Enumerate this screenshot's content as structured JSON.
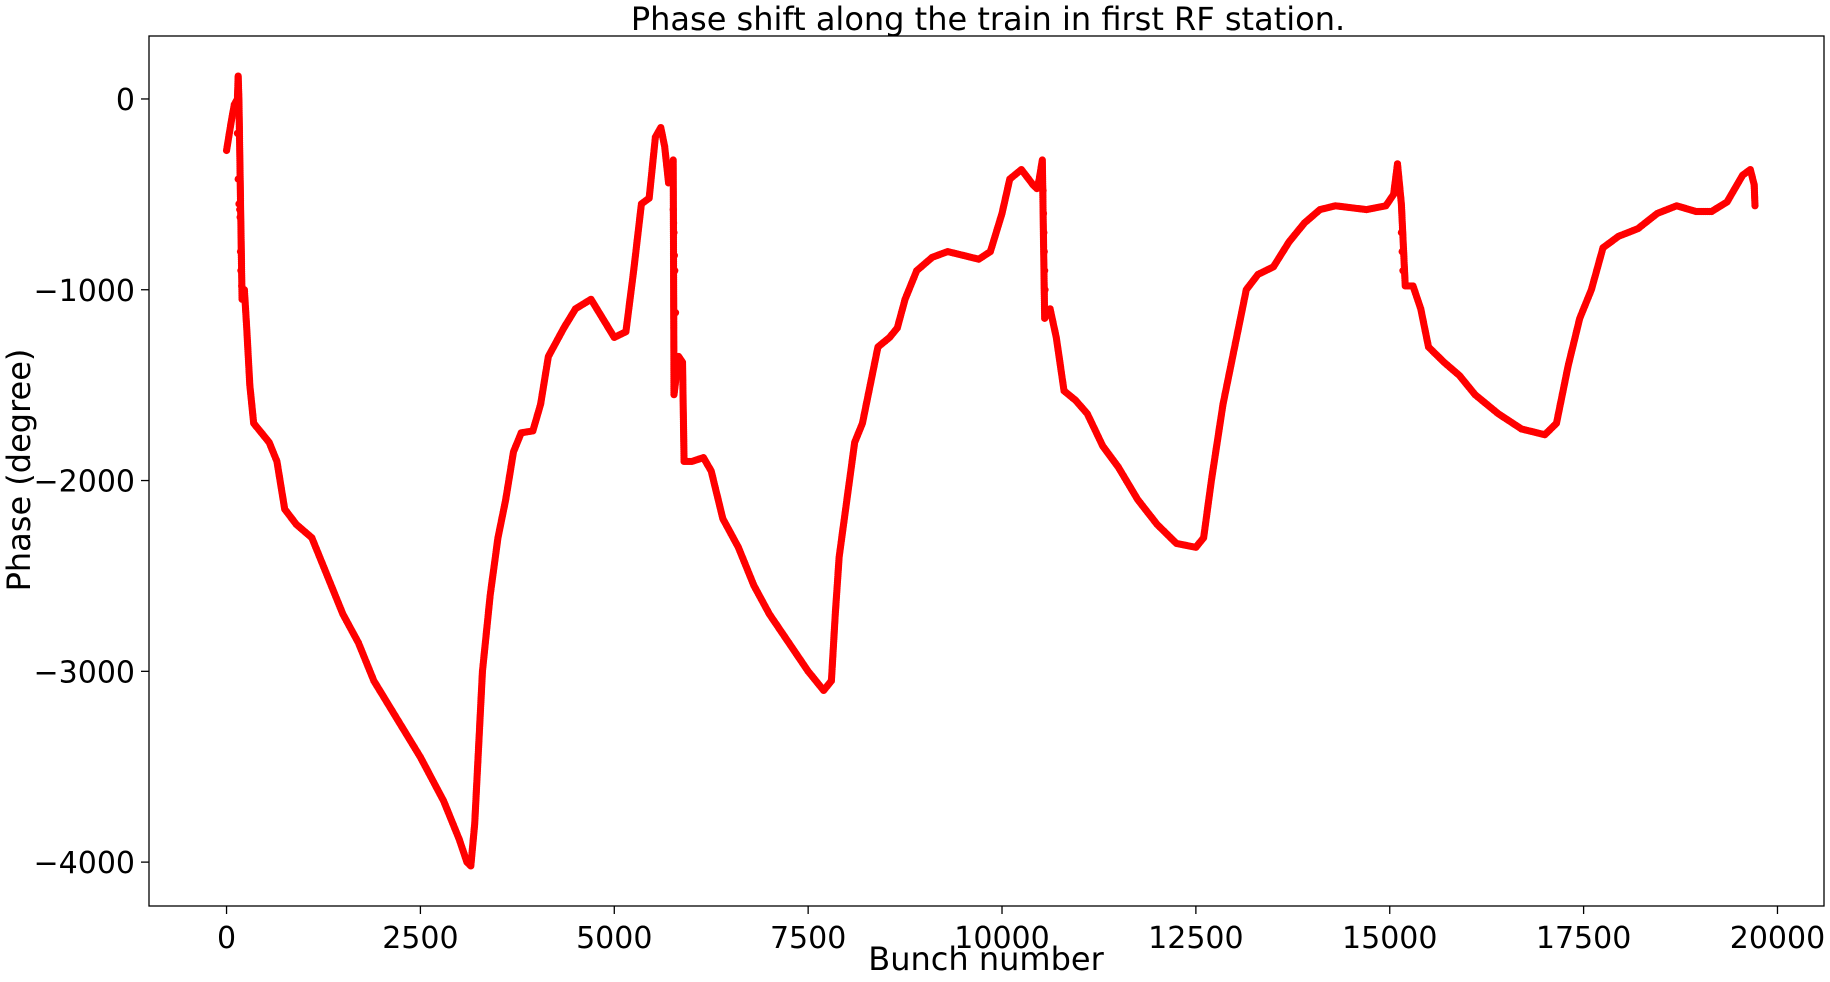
{
  "chart_data": {
    "type": "scatter",
    "title": "Phase shift along the train in first RF station.",
    "xlabel": "Bunch number",
    "ylabel": "Phase (degree)",
    "xlim": [
      -1000,
      20600
    ],
    "ylim": [
      -4230,
      330
    ],
    "xticks": [
      0,
      2500,
      5000,
      7500,
      10000,
      12500,
      15000,
      17500,
      20000
    ],
    "yticks": [
      0,
      -1000,
      -2000,
      -3000,
      -4000
    ],
    "xtick_labels": [
      "0",
      "2500",
      "5000",
      "7500",
      "10000",
      "12500",
      "15000",
      "17500",
      "20000"
    ],
    "ytick_labels": [
      "0",
      "−1000",
      "−2000",
      "−3000",
      "−4000"
    ],
    "grid": false,
    "legend": "none",
    "series": [
      {
        "color": "#ff0000",
        "marker": "circle",
        "points": [
          [
            0,
            -270
          ],
          [
            60,
            -120
          ],
          [
            100,
            -30
          ],
          [
            140,
            0
          ],
          [
            150,
            120
          ],
          [
            160,
            -10
          ],
          [
            200,
            -1050
          ],
          [
            230,
            -1000
          ],
          [
            260,
            -1200
          ],
          [
            300,
            -1500
          ],
          [
            350,
            -1700
          ],
          [
            450,
            -1750
          ],
          [
            550,
            -1800
          ],
          [
            650,
            -1900
          ],
          [
            750,
            -2150
          ],
          [
            900,
            -2230
          ],
          [
            1100,
            -2300
          ],
          [
            1300,
            -2500
          ],
          [
            1500,
            -2700
          ],
          [
            1700,
            -2850
          ],
          [
            1900,
            -3050
          ],
          [
            2200,
            -3250
          ],
          [
            2500,
            -3450
          ],
          [
            2800,
            -3680
          ],
          [
            3000,
            -3880
          ],
          [
            3100,
            -4000
          ],
          [
            3150,
            -4020
          ],
          [
            3200,
            -3800
          ],
          [
            3250,
            -3400
          ],
          [
            3300,
            -3000
          ],
          [
            3400,
            -2600
          ],
          [
            3500,
            -2300
          ],
          [
            3600,
            -2100
          ],
          [
            3700,
            -1850
          ],
          [
            3800,
            -1750
          ],
          [
            3950,
            -1740
          ],
          [
            4050,
            -1600
          ],
          [
            4150,
            -1350
          ],
          [
            4350,
            -1200
          ],
          [
            4500,
            -1100
          ],
          [
            4700,
            -1050
          ],
          [
            4850,
            -1150
          ],
          [
            5000,
            -1250
          ],
          [
            5150,
            -1220
          ],
          [
            5250,
            -900
          ],
          [
            5350,
            -550
          ],
          [
            5450,
            -520
          ],
          [
            5530,
            -200
          ],
          [
            5600,
            -150
          ],
          [
            5650,
            -250
          ],
          [
            5700,
            -440
          ],
          [
            5740,
            -420
          ],
          [
            5760,
            -320
          ],
          [
            5770,
            -1550
          ],
          [
            5830,
            -1350
          ],
          [
            5880,
            -1380
          ],
          [
            5900,
            -1900
          ],
          [
            6000,
            -1900
          ],
          [
            6150,
            -1880
          ],
          [
            6250,
            -1950
          ],
          [
            6400,
            -2200
          ],
          [
            6600,
            -2350
          ],
          [
            6800,
            -2550
          ],
          [
            7000,
            -2700
          ],
          [
            7250,
            -2850
          ],
          [
            7500,
            -3000
          ],
          [
            7700,
            -3100
          ],
          [
            7800,
            -3050
          ],
          [
            7850,
            -2700
          ],
          [
            7900,
            -2400
          ],
          [
            8000,
            -2100
          ],
          [
            8100,
            -1800
          ],
          [
            8200,
            -1700
          ],
          [
            8300,
            -1500
          ],
          [
            8400,
            -1300
          ],
          [
            8550,
            -1250
          ],
          [
            8650,
            -1200
          ],
          [
            8750,
            -1050
          ],
          [
            8900,
            -900
          ],
          [
            9100,
            -830
          ],
          [
            9300,
            -800
          ],
          [
            9500,
            -820
          ],
          [
            9700,
            -840
          ],
          [
            9850,
            -800
          ],
          [
            10000,
            -600
          ],
          [
            10100,
            -420
          ],
          [
            10250,
            -370
          ],
          [
            10400,
            -450
          ],
          [
            10450,
            -470
          ],
          [
            10480,
            -420
          ],
          [
            10520,
            -320
          ],
          [
            10550,
            -1150
          ],
          [
            10620,
            -1100
          ],
          [
            10700,
            -1250
          ],
          [
            10800,
            -1530
          ],
          [
            10950,
            -1580
          ],
          [
            11100,
            -1650
          ],
          [
            11300,
            -1820
          ],
          [
            11500,
            -1930
          ],
          [
            11750,
            -2100
          ],
          [
            12000,
            -2230
          ],
          [
            12250,
            -2330
          ],
          [
            12500,
            -2350
          ],
          [
            12600,
            -2300
          ],
          [
            12700,
            -2000
          ],
          [
            12850,
            -1600
          ],
          [
            13000,
            -1300
          ],
          [
            13150,
            -1000
          ],
          [
            13300,
            -920
          ],
          [
            13500,
            -880
          ],
          [
            13700,
            -750
          ],
          [
            13900,
            -650
          ],
          [
            14100,
            -580
          ],
          [
            14300,
            -560
          ],
          [
            14500,
            -570
          ],
          [
            14700,
            -580
          ],
          [
            14950,
            -560
          ],
          [
            15050,
            -500
          ],
          [
            15100,
            -340
          ],
          [
            15150,
            -550
          ],
          [
            15200,
            -980
          ],
          [
            15300,
            -980
          ],
          [
            15400,
            -1100
          ],
          [
            15500,
            -1300
          ],
          [
            15700,
            -1380
          ],
          [
            15900,
            -1450
          ],
          [
            16100,
            -1550
          ],
          [
            16400,
            -1650
          ],
          [
            16700,
            -1730
          ],
          [
            17000,
            -1760
          ],
          [
            17150,
            -1700
          ],
          [
            17300,
            -1400
          ],
          [
            17450,
            -1150
          ],
          [
            17600,
            -1000
          ],
          [
            17750,
            -780
          ],
          [
            17950,
            -720
          ],
          [
            18200,
            -680
          ],
          [
            18450,
            -600
          ],
          [
            18700,
            -560
          ],
          [
            18950,
            -590
          ],
          [
            19150,
            -590
          ],
          [
            19350,
            -540
          ],
          [
            19550,
            -400
          ],
          [
            19650,
            -370
          ],
          [
            19700,
            -450
          ],
          [
            19710,
            -560
          ]
        ],
        "scattered_points": [
          [
            140,
            -180
          ],
          [
            150,
            -420
          ],
          [
            160,
            -550
          ],
          [
            170,
            -580
          ],
          [
            175,
            -620
          ],
          [
            180,
            -800
          ],
          [
            185,
            -900
          ],
          [
            195,
            -980
          ],
          [
            5760,
            -580
          ],
          [
            5765,
            -650
          ],
          [
            5770,
            -700
          ],
          [
            5775,
            -820
          ],
          [
            5780,
            -900
          ],
          [
            5790,
            -1120
          ],
          [
            5800,
            -1350
          ],
          [
            10530,
            -480
          ],
          [
            10535,
            -600
          ],
          [
            10540,
            -700
          ],
          [
            10545,
            -800
          ],
          [
            10550,
            -900
          ],
          [
            10555,
            -1000
          ],
          [
            15150,
            -700
          ],
          [
            15160,
            -800
          ],
          [
            15170,
            -900
          ]
        ]
      }
    ]
  }
}
